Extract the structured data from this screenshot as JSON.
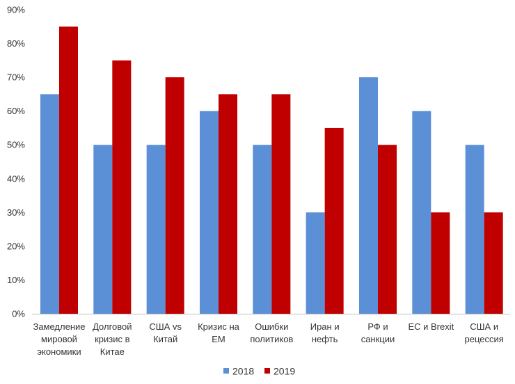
{
  "chart_data": {
    "type": "bar",
    "title": "",
    "xlabel": "",
    "ylabel": "",
    "ylim": [
      0,
      90
    ],
    "yticks": [
      "0%",
      "10%",
      "20%",
      "30%",
      "40%",
      "50%",
      "60%",
      "70%",
      "80%",
      "90%"
    ],
    "categories": [
      [
        "Замедление",
        "мировой",
        "экономики"
      ],
      [
        "Долговой",
        "кризис в",
        "Китае"
      ],
      [
        "США vs",
        "Китай"
      ],
      [
        "Кризис на",
        "ЕМ"
      ],
      [
        "Ошибки",
        "политиков"
      ],
      [
        "Иран и",
        "нефть"
      ],
      [
        "РФ и",
        "санкции"
      ],
      [
        "ЕС и Brexit"
      ],
      [
        "США и",
        "рецессия"
      ]
    ],
    "series": [
      {
        "name": "2018",
        "color": "#5B8FD6",
        "values": [
          65,
          50,
          50,
          60,
          50,
          30,
          70,
          60,
          50
        ]
      },
      {
        "name": "2019",
        "color": "#C00000",
        "values": [
          85,
          75,
          70,
          65,
          65,
          55,
          50,
          30,
          30
        ]
      }
    ],
    "legend": "bottom"
  }
}
